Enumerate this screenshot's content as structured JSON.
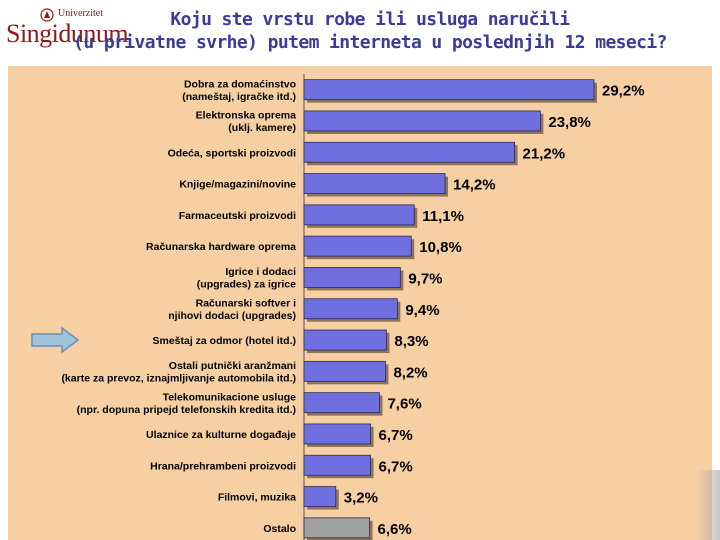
{
  "header": {
    "logo_text": "Singidunum",
    "logo_subtext": "Univerzitet",
    "title_line1": "Koju ste vrstu robe ili usluga naručili",
    "title_line2": "(u privatne svrhe) putem interneta u poslednjih 12 meseci?"
  },
  "colors": {
    "bar": "#6f6fe0",
    "bar_other": "#a0a0a0",
    "background": "#f6cfa3",
    "title": "#3b3b9c",
    "arrow": "#9fc4dc"
  },
  "annotations": {
    "arrow_icon": "right-arrow-icon"
  },
  "chart_data": {
    "type": "bar",
    "orientation": "horizontal",
    "categories": [
      [
        "Dobra za domaćinstvo",
        "(nameštaj, igračke itd.)"
      ],
      [
        "Elektronska oprema",
        "(uklj. kamere)"
      ],
      [
        "Odeća, sportski proizvodi"
      ],
      [
        "Knjige/magazini/novine"
      ],
      [
        "Farmaceutski proizvodi"
      ],
      [
        "Računarska hardware oprema"
      ],
      [
        "Igrice i dodaci",
        "(upgrades) za igrice"
      ],
      [
        "Računarski softver i",
        "njihovi dodaci (upgrades)"
      ],
      [
        "Smeštaj za odmor (hotel itd.)"
      ],
      [
        "Ostali putnički aranžmani",
        "(karte za prevoz, iznajmljivanje automobila itd.)"
      ],
      [
        "Telekomunikacione usluge",
        "(npr. dopuna pripejd telefonskih kredita itd.)"
      ],
      [
        "Ulaznice za kulturne događaje"
      ],
      [
        "Hrana/prehrambeni proizvodi"
      ],
      [
        "Filmovi, muzika"
      ],
      [
        "Ostalo"
      ]
    ],
    "values": [
      29.2,
      23.8,
      21.2,
      14.2,
      11.1,
      10.8,
      9.7,
      9.4,
      8.3,
      8.2,
      7.6,
      6.7,
      6.7,
      3.2,
      6.6
    ],
    "value_labels": [
      "29,2%",
      "23,8%",
      "21,2%",
      "14,2%",
      "11,1%",
      "10,8%",
      "9,7%",
      "9,4%",
      "8,3%",
      "8,2%",
      "7,6%",
      "6,7%",
      "6,7%",
      "3,2%",
      "6,6%"
    ],
    "highlight_index": 14,
    "title": "",
    "xlabel": "",
    "ylabel": "",
    "xlim": [
      0,
      33
    ],
    "grid": false
  }
}
